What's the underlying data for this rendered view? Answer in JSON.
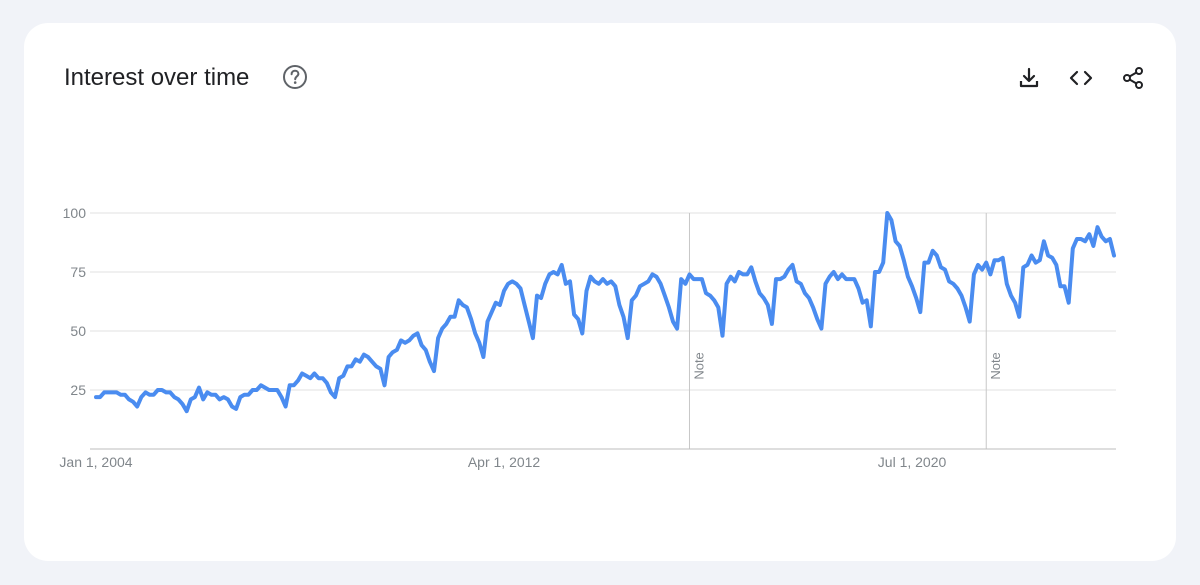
{
  "card": {
    "title": "Interest over time",
    "icons": {
      "help": "help-circle-icon",
      "download": "download-icon",
      "embed": "code-embed-icon",
      "share": "share-icon"
    }
  },
  "chart_data": {
    "type": "line",
    "title": "Interest over time",
    "xlabel": "",
    "ylabel": "",
    "ylim": [
      0,
      100
    ],
    "yticks": [
      25,
      50,
      75,
      100
    ],
    "x_tick_labels": [
      {
        "label": "Jan 1, 2004",
        "date": "2004-01"
      },
      {
        "label": "Apr 1, 2012",
        "date": "2012-04"
      },
      {
        "label": "Jul 1, 2020",
        "date": "2020-07"
      }
    ],
    "grid": true,
    "line_color": "#4a8cf0",
    "annotations": [
      {
        "label": "Note",
        "date": "2016-01"
      },
      {
        "label": "Note",
        "date": "2022-01"
      }
    ],
    "series": [
      {
        "start": "2004-01",
        "frequency": "monthly",
        "values": [
          22,
          22,
          24,
          24,
          24,
          24,
          23,
          23,
          21,
          20,
          18,
          22,
          24,
          23,
          23,
          25,
          25,
          24,
          24,
          22,
          21,
          19,
          16,
          21,
          22,
          26,
          21,
          24,
          23,
          23,
          21,
          22,
          21,
          18,
          17,
          22,
          23,
          23,
          25,
          25,
          27,
          26,
          25,
          25,
          25,
          22,
          18,
          27,
          27,
          29,
          32,
          31,
          30,
          32,
          30,
          30,
          28,
          24,
          22,
          30,
          31,
          35,
          35,
          38,
          37,
          40,
          39,
          37,
          35,
          34,
          27,
          39,
          41,
          42,
          46,
          45,
          46,
          48,
          49,
          44,
          42,
          37,
          33,
          47,
          51,
          53,
          56,
          56,
          63,
          61,
          60,
          55,
          49,
          45,
          39,
          54,
          58,
          62,
          61,
          67,
          70,
          71,
          70,
          68,
          61,
          54,
          47,
          65,
          64,
          70,
          74,
          75,
          74,
          78,
          70,
          71,
          57,
          55,
          49,
          67,
          73,
          71,
          70,
          72,
          70,
          71,
          69,
          61,
          56,
          47,
          63,
          65,
          69,
          70,
          71,
          74,
          73,
          70,
          65,
          60,
          54,
          51,
          72,
          70,
          74,
          72,
          72,
          72,
          66,
          65,
          63,
          60,
          48,
          70,
          73,
          71,
          75,
          74,
          74,
          77,
          71,
          66,
          64,
          61,
          53,
          72,
          72,
          73,
          76,
          78,
          71,
          70,
          66,
          64,
          60,
          55,
          51,
          70,
          73,
          75,
          72,
          74,
          72,
          72,
          72,
          68,
          62,
          63,
          52,
          75,
          75,
          79,
          100,
          97,
          88,
          86,
          80,
          73,
          69,
          64,
          58,
          79,
          79,
          84,
          82,
          77,
          76,
          71,
          70,
          68,
          65,
          60,
          54,
          74,
          78,
          76,
          79,
          74,
          80,
          80,
          81,
          70,
          65,
          62,
          56,
          77,
          78,
          82,
          79,
          80,
          88,
          82,
          81,
          78,
          69,
          69,
          62,
          85,
          89,
          89,
          88,
          91,
          86,
          94,
          90,
          88,
          89,
          82
        ]
      }
    ]
  }
}
